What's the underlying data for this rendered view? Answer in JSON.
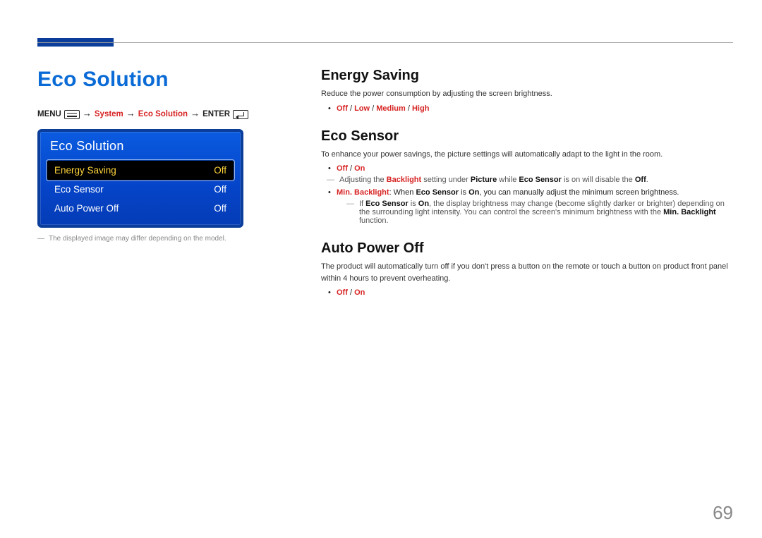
{
  "page_number": "69",
  "colors": {
    "accent": "#0b6bd6",
    "header_bar": "#0b3e9b",
    "osd_grad_top": "#0a5be0",
    "osd_grad_mid": "#0544c8",
    "osd_grad_bot": "#053cb6",
    "osd_sel_bg": "#000000",
    "osd_sel_text": "#ffd53a",
    "red": "#d72323"
  },
  "left": {
    "title": "Eco Solution",
    "breadcrumb": {
      "menu_label": "MENU",
      "arrow": "→",
      "system": "System",
      "eco_solution": "Eco Solution",
      "enter_label": "ENTER"
    },
    "osd": {
      "title": "Eco Solution",
      "rows": [
        {
          "label": "Energy Saving",
          "value": "Off",
          "selected": true
        },
        {
          "label": "Eco Sensor",
          "value": "Off",
          "selected": false
        },
        {
          "label": "Auto Power Off",
          "value": "Off",
          "selected": false
        }
      ]
    },
    "disclaimer_dash": "―",
    "disclaimer": "The displayed image may differ depending on the model."
  },
  "right": {
    "energy_saving": {
      "heading": "Energy Saving",
      "desc": "Reduce the power consumption by adjusting the screen brightness.",
      "opts": {
        "off": "Off",
        "low": "Low",
        "medium": "Medium",
        "high": "High",
        "sep": " / "
      }
    },
    "eco_sensor": {
      "heading": "Eco Sensor",
      "desc": "To enhance your power savings, the picture settings will automatically adapt to the light in the room.",
      "opts": {
        "off": "Off",
        "on": "On",
        "sep": " / "
      },
      "note1": {
        "prefix": "Adjusting the ",
        "backlight": "Backlight",
        "mid1": " setting under ",
        "picture": "Picture",
        "mid2": " while ",
        "eco_sensor": "Eco Sensor",
        "mid3": " is on will disable the ",
        "off": "Off",
        "suffix": "."
      },
      "min_bl_bullet": {
        "min_backlight": "Min. Backlight",
        "colon": ": When ",
        "eco_sensor": "Eco Sensor",
        "mid": " is ",
        "on": "On",
        "suffix": ", you can manually adjust the minimum screen brightness."
      },
      "note2": {
        "prefix": "If ",
        "eco_sensor": "Eco Sensor",
        "mid1": " is ",
        "on": "On",
        "mid2": ", the display brightness may change (become slightly darker or brighter) depending on the surrounding light intensity. You can control the screen's minimum brightness with the ",
        "min_backlight": "Min. Backlight",
        "suffix": " function."
      }
    },
    "auto_power_off": {
      "heading": "Auto Power Off",
      "desc": "The product will automatically turn off if you don't press a button on the remote or touch a button on product front panel within 4 hours to prevent overheating.",
      "opts": {
        "off": "Off",
        "on": "On",
        "sep": " / "
      }
    }
  }
}
